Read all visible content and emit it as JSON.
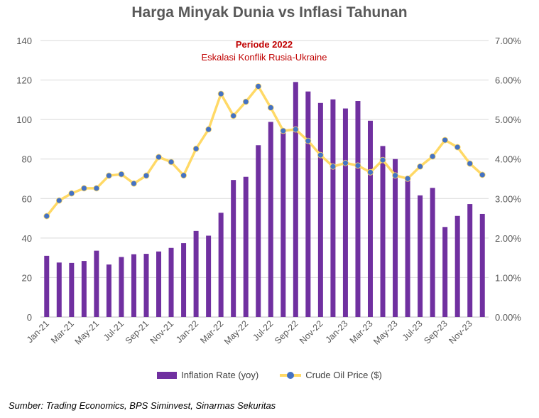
{
  "chart_data": {
    "type": "bar+line",
    "title": "Harga Minyak Dunia vs Inflasi Tahunan",
    "annotation": {
      "title": "Periode 2022",
      "subtitle": "Eskalasi Konflik Rusia-Ukraine"
    },
    "categories": [
      "Jan-21",
      "Feb-21",
      "Mar-21",
      "Apr-21",
      "May-21",
      "Jun-21",
      "Jul-21",
      "Aug-21",
      "Sep-21",
      "Oct-21",
      "Nov-21",
      "Dec-21",
      "Jan-22",
      "Feb-22",
      "Mar-22",
      "Apr-22",
      "May-22",
      "Jun-22",
      "Jul-22",
      "Aug-22",
      "Sep-22",
      "Oct-22",
      "Nov-22",
      "Dec-22",
      "Jan-23",
      "Feb-23",
      "Mar-23",
      "Apr-23",
      "May-23",
      "Jun-23",
      "Jul-23",
      "Aug-23",
      "Sep-23",
      "Oct-23",
      "Nov-23",
      "Dec-23"
    ],
    "x_tick_labels": [
      "Jan-21",
      "Mar-21",
      "May-21",
      "Jul-21",
      "Sep-21",
      "Nov-21",
      "Jan-22",
      "Mar-22",
      "May-22",
      "Jul-22",
      "Sep-22",
      "Nov-22",
      "Jan-23",
      "Mar-23",
      "May-23",
      "Jul-23",
      "Sep-23",
      "Nov-23"
    ],
    "series": [
      {
        "name": "Inflation Rate (yoy)",
        "type": "bar",
        "axis": "right",
        "color": "#7030a0",
        "values": [
          1.55,
          1.38,
          1.37,
          1.42,
          1.68,
          1.33,
          1.52,
          1.59,
          1.6,
          1.66,
          1.75,
          1.87,
          2.18,
          2.06,
          2.64,
          3.47,
          3.55,
          4.35,
          4.94,
          4.69,
          5.95,
          5.71,
          5.42,
          5.51,
          5.28,
          5.47,
          4.97,
          4.33,
          4.0,
          3.52,
          3.08,
          3.27,
          2.28,
          2.56,
          2.86,
          2.61
        ]
      },
      {
        "name": "Crude Oil Price ($)",
        "type": "line",
        "axis": "left",
        "color": "#ffd966",
        "marker_color": "#4472c4",
        "values": [
          51.1,
          59,
          62.6,
          65.2,
          65.2,
          71.6,
          72.3,
          67.6,
          71.6,
          81,
          78.5,
          71.7,
          85.2,
          95,
          113,
          101.9,
          109,
          116.8,
          106,
          94.3,
          95,
          89.2,
          82,
          76.2,
          78,
          76.7,
          73.3,
          79.5,
          71.7,
          70.1,
          76.2,
          81.3,
          89.6,
          86,
          77.7,
          72
        ]
      }
    ],
    "left_axis": {
      "range": [
        0,
        140
      ],
      "ticks": [
        "0",
        "20",
        "40",
        "60",
        "80",
        "100",
        "120",
        "140"
      ]
    },
    "right_axis": {
      "range": [
        0,
        7
      ],
      "ticks": [
        "0.00%",
        "1.00%",
        "2.00%",
        "3.00%",
        "4.00%",
        "5.00%",
        "6.00%",
        "7.00%"
      ]
    },
    "grid": true,
    "legend_position": "bottom",
    "source": "Sumber: Trading Economics, BPS Siminvest, Sinarmas Sekuritas"
  }
}
